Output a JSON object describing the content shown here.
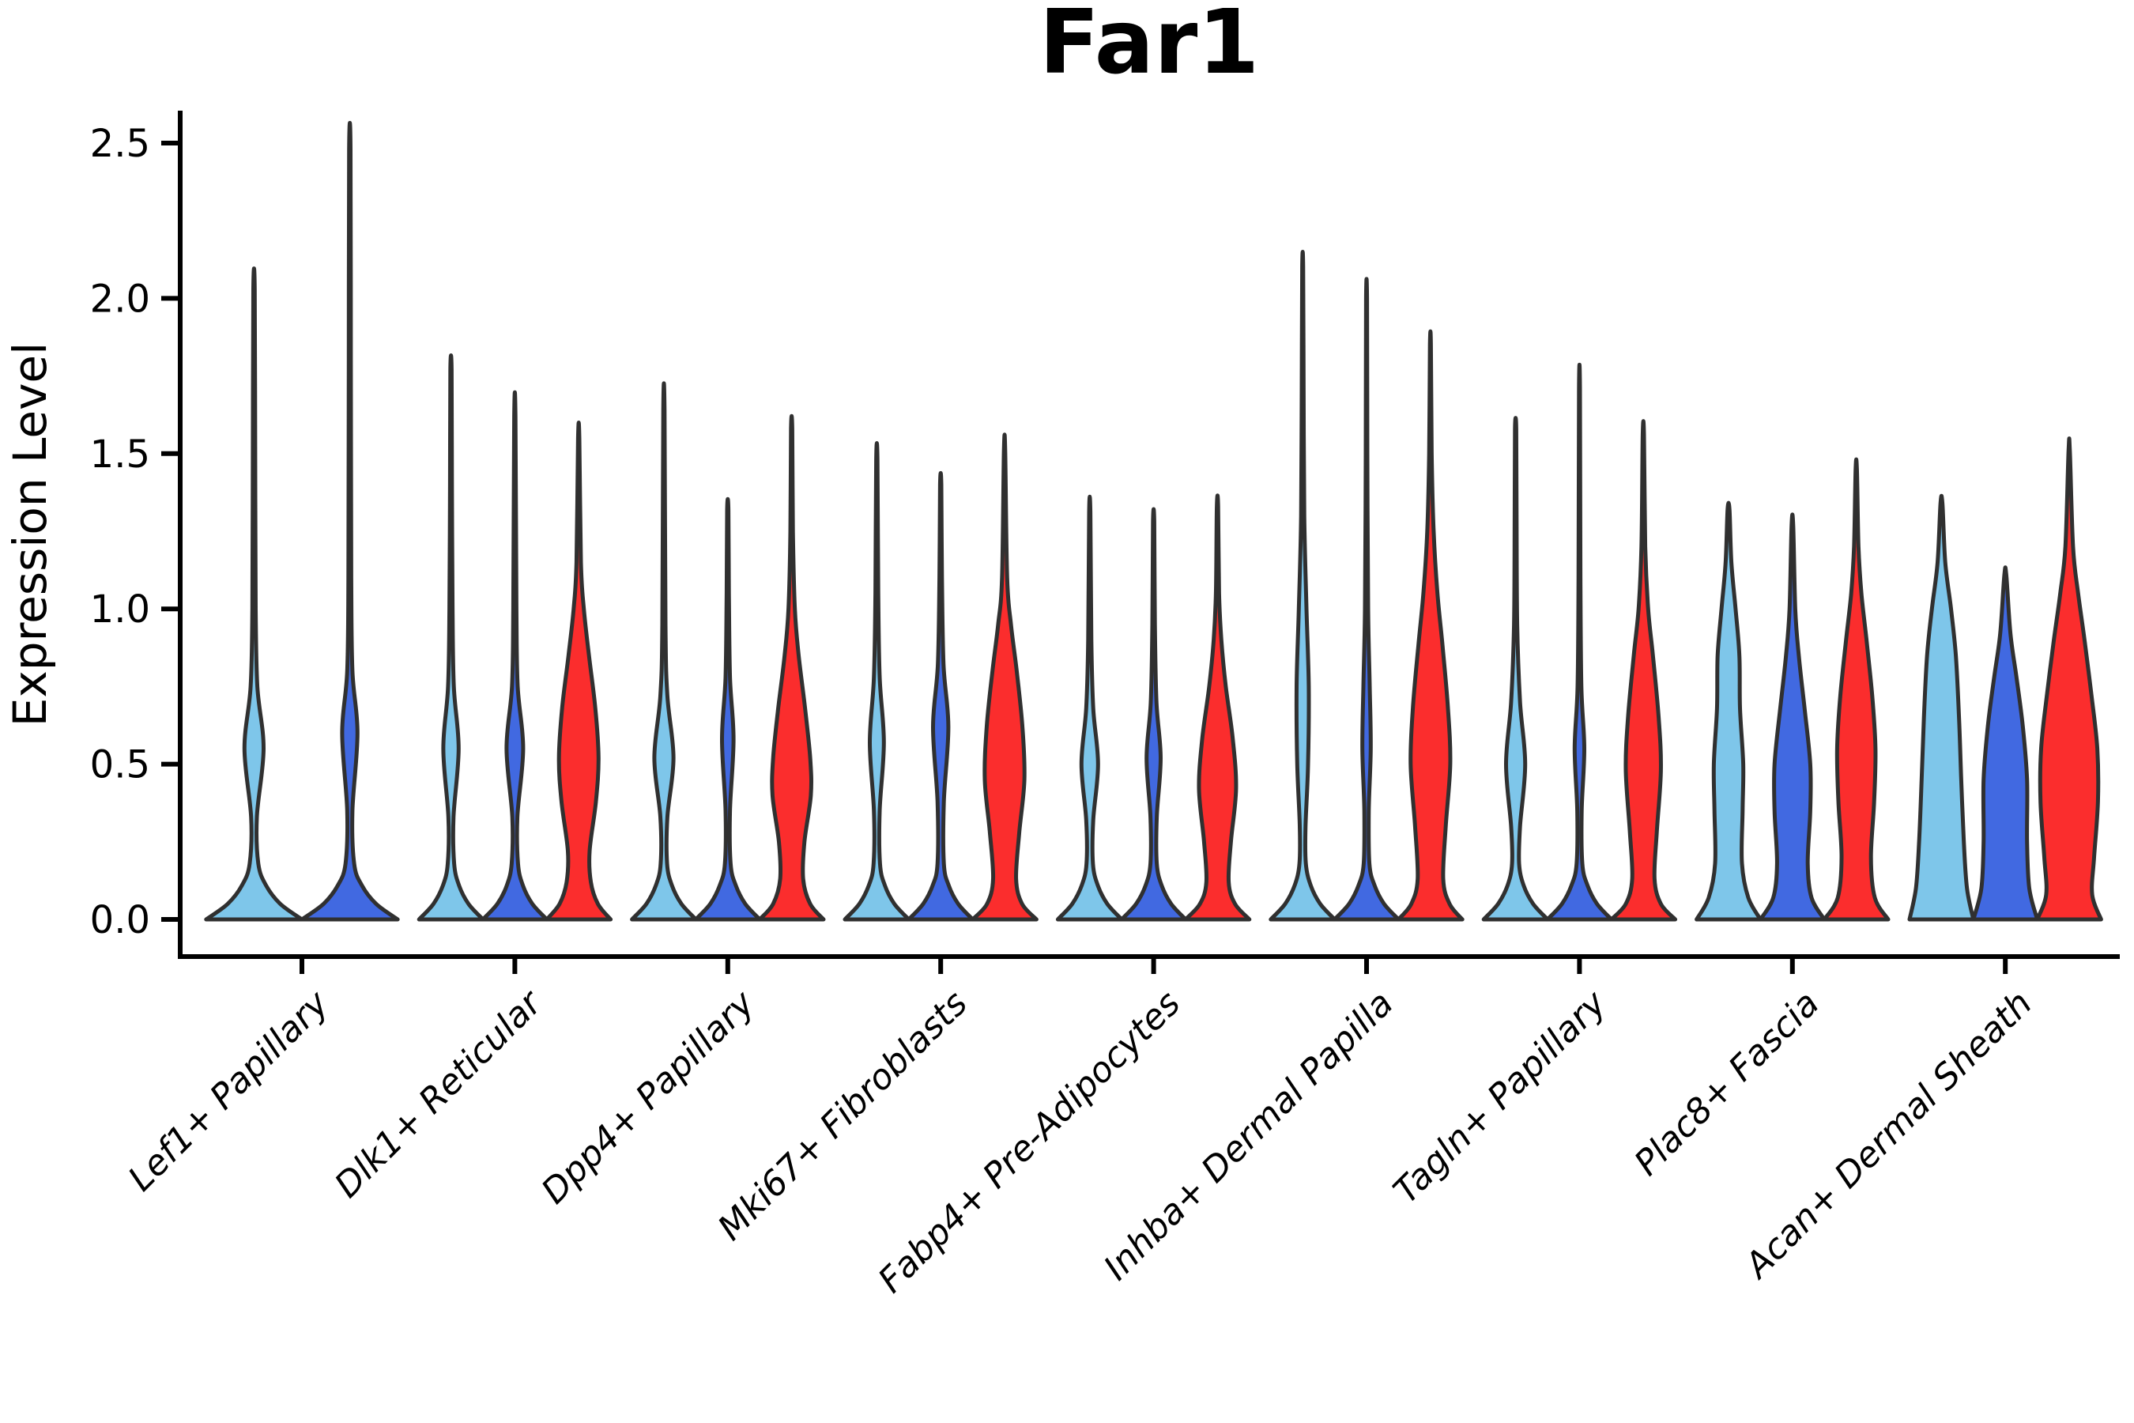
{
  "chart_data": {
    "type": "violin",
    "title": "Far1",
    "ylabel": "Expression Level",
    "xlabel": "",
    "ylim": [
      0,
      2.6
    ],
    "grid": false,
    "legend": "none",
    "yticks": [
      {
        "value": 0.0,
        "label": "0.0"
      },
      {
        "value": 0.5,
        "label": "0.5"
      },
      {
        "value": 1.0,
        "label": "1.0"
      },
      {
        "value": 1.5,
        "label": "1.5"
      },
      {
        "value": 2.0,
        "label": "2.0"
      },
      {
        "value": 2.5,
        "label": "2.5"
      }
    ],
    "categories": [
      "Lef1+ Papillary",
      "Dlk1+ Reticular",
      "Dpp4+ Papillary",
      "Mki67+ Fibroblasts",
      "Fabp4+ Pre-Adipocytes",
      "Inhba+ Dermal Papilla",
      "Tagln+ Papillary",
      "Plac8+ Fascia",
      "Acan+ Dermal Sheath"
    ],
    "series_colors": {
      "light_blue": "#7EC6EA",
      "royal_blue": "#4169E1",
      "red": "#FB2D2D"
    },
    "outline_color": "#303030",
    "axis_color": "#000000",
    "violins": [
      {
        "category": 0,
        "series": "light_blue",
        "max_expression": 2.03,
        "density_profile": [
          [
            0,
            1
          ],
          [
            0.05,
            0.55
          ],
          [
            0.11,
            0.25
          ],
          [
            0.18,
            0.09
          ],
          [
            0.33,
            0.06
          ],
          [
            0.55,
            0.2
          ],
          [
            0.75,
            0.07
          ],
          [
            1.0,
            0.035
          ],
          [
            1.5,
            0.025
          ],
          [
            2.03,
            0.015
          ]
        ]
      },
      {
        "category": 0,
        "series": "royal_blue",
        "max_expression": 2.48,
        "density_profile": [
          [
            0,
            1
          ],
          [
            0.05,
            0.55
          ],
          [
            0.11,
            0.25
          ],
          [
            0.18,
            0.09
          ],
          [
            0.35,
            0.055
          ],
          [
            0.6,
            0.16
          ],
          [
            0.8,
            0.055
          ],
          [
            1.1,
            0.03
          ],
          [
            1.8,
            0.022
          ],
          [
            2.48,
            0.015
          ]
        ]
      },
      {
        "category": 1,
        "series": "light_blue",
        "max_expression": 1.77,
        "density_profile": [
          [
            0,
            1
          ],
          [
            0.05,
            0.55
          ],
          [
            0.11,
            0.25
          ],
          [
            0.18,
            0.1
          ],
          [
            0.33,
            0.08
          ],
          [
            0.55,
            0.24
          ],
          [
            0.75,
            0.09
          ],
          [
            1.0,
            0.05
          ],
          [
            1.4,
            0.03
          ],
          [
            1.77,
            0.02
          ]
        ]
      },
      {
        "category": 1,
        "series": "royal_blue",
        "max_expression": 1.62,
        "density_profile": [
          [
            0,
            1
          ],
          [
            0.05,
            0.55
          ],
          [
            0.11,
            0.25
          ],
          [
            0.18,
            0.1
          ],
          [
            0.33,
            0.08
          ],
          [
            0.55,
            0.26
          ],
          [
            0.75,
            0.09
          ],
          [
            1.0,
            0.05
          ],
          [
            1.62,
            0.02
          ]
        ]
      },
      {
        "category": 1,
        "series": "red",
        "max_expression": 1.55,
        "density_profile": [
          [
            0,
            1
          ],
          [
            0.05,
            0.6
          ],
          [
            0.12,
            0.38
          ],
          [
            0.22,
            0.34
          ],
          [
            0.38,
            0.54
          ],
          [
            0.52,
            0.62
          ],
          [
            0.68,
            0.52
          ],
          [
            0.85,
            0.32
          ],
          [
            1.0,
            0.16
          ],
          [
            1.15,
            0.07
          ],
          [
            1.55,
            0.02
          ]
        ]
      },
      {
        "category": 2,
        "series": "light_blue",
        "max_expression": 1.64,
        "density_profile": [
          [
            0,
            1
          ],
          [
            0.05,
            0.55
          ],
          [
            0.11,
            0.25
          ],
          [
            0.18,
            0.1
          ],
          [
            0.33,
            0.11
          ],
          [
            0.52,
            0.3
          ],
          [
            0.72,
            0.11
          ],
          [
            0.95,
            0.05
          ],
          [
            1.64,
            0.02
          ]
        ]
      },
      {
        "category": 2,
        "series": "royal_blue",
        "max_expression": 1.32,
        "density_profile": [
          [
            0,
            1
          ],
          [
            0.05,
            0.55
          ],
          [
            0.11,
            0.25
          ],
          [
            0.18,
            0.09
          ],
          [
            0.35,
            0.07
          ],
          [
            0.58,
            0.18
          ],
          [
            0.78,
            0.07
          ],
          [
            1.05,
            0.035
          ],
          [
            1.32,
            0.02
          ]
        ]
      },
      {
        "category": 2,
        "series": "red",
        "max_expression": 1.58,
        "density_profile": [
          [
            0,
            1
          ],
          [
            0.05,
            0.58
          ],
          [
            0.13,
            0.36
          ],
          [
            0.25,
            0.4
          ],
          [
            0.4,
            0.6
          ],
          [
            0.52,
            0.58
          ],
          [
            0.68,
            0.42
          ],
          [
            0.85,
            0.22
          ],
          [
            1.0,
            0.1
          ],
          [
            1.25,
            0.04
          ],
          [
            1.58,
            0.02
          ]
        ]
      },
      {
        "category": 3,
        "series": "light_blue",
        "max_expression": 1.48,
        "density_profile": [
          [
            0,
            1
          ],
          [
            0.05,
            0.55
          ],
          [
            0.11,
            0.25
          ],
          [
            0.18,
            0.1
          ],
          [
            0.35,
            0.09
          ],
          [
            0.57,
            0.22
          ],
          [
            0.78,
            0.09
          ],
          [
            1.05,
            0.045
          ],
          [
            1.48,
            0.02
          ]
        ]
      },
      {
        "category": 3,
        "series": "royal_blue",
        "max_expression": 1.4,
        "density_profile": [
          [
            0,
            1
          ],
          [
            0.05,
            0.55
          ],
          [
            0.11,
            0.25
          ],
          [
            0.18,
            0.1
          ],
          [
            0.38,
            0.1
          ],
          [
            0.62,
            0.24
          ],
          [
            0.82,
            0.09
          ],
          [
            1.1,
            0.04
          ],
          [
            1.4,
            0.02
          ]
        ]
      },
      {
        "category": 3,
        "series": "red",
        "max_expression": 1.51,
        "density_profile": [
          [
            0,
            1
          ],
          [
            0.05,
            0.55
          ],
          [
            0.13,
            0.36
          ],
          [
            0.28,
            0.46
          ],
          [
            0.45,
            0.62
          ],
          [
            0.62,
            0.56
          ],
          [
            0.8,
            0.38
          ],
          [
            0.95,
            0.2
          ],
          [
            1.1,
            0.08
          ],
          [
            1.51,
            0.02
          ]
        ]
      },
      {
        "category": 4,
        "series": "light_blue",
        "max_expression": 1.31,
        "density_profile": [
          [
            0,
            1
          ],
          [
            0.05,
            0.55
          ],
          [
            0.11,
            0.25
          ],
          [
            0.18,
            0.1
          ],
          [
            0.32,
            0.11
          ],
          [
            0.5,
            0.26
          ],
          [
            0.68,
            0.11
          ],
          [
            0.9,
            0.05
          ],
          [
            1.31,
            0.02
          ]
        ]
      },
      {
        "category": 4,
        "series": "royal_blue",
        "max_expression": 1.28,
        "density_profile": [
          [
            0,
            1
          ],
          [
            0.05,
            0.55
          ],
          [
            0.11,
            0.25
          ],
          [
            0.18,
            0.1
          ],
          [
            0.33,
            0.1
          ],
          [
            0.52,
            0.22
          ],
          [
            0.7,
            0.09
          ],
          [
            0.95,
            0.04
          ],
          [
            1.28,
            0.02
          ]
        ]
      },
      {
        "category": 4,
        "series": "red",
        "max_expression": 1.33,
        "density_profile": [
          [
            0,
            1
          ],
          [
            0.05,
            0.55
          ],
          [
            0.12,
            0.35
          ],
          [
            0.25,
            0.42
          ],
          [
            0.42,
            0.58
          ],
          [
            0.58,
            0.48
          ],
          [
            0.75,
            0.26
          ],
          [
            0.9,
            0.12
          ],
          [
            1.05,
            0.05
          ],
          [
            1.33,
            0.02
          ]
        ]
      },
      {
        "category": 5,
        "series": "light_blue",
        "max_expression": 2.1,
        "density_profile": [
          [
            0,
            1
          ],
          [
            0.05,
            0.55
          ],
          [
            0.11,
            0.25
          ],
          [
            0.18,
            0.1
          ],
          [
            0.3,
            0.09
          ],
          [
            0.5,
            0.17
          ],
          [
            0.75,
            0.19
          ],
          [
            1.0,
            0.12
          ],
          [
            1.3,
            0.05
          ],
          [
            1.7,
            0.03
          ],
          [
            2.1,
            0.015
          ]
        ]
      },
      {
        "category": 5,
        "series": "royal_blue",
        "max_expression": 2.0,
        "density_profile": [
          [
            0,
            1
          ],
          [
            0.05,
            0.55
          ],
          [
            0.11,
            0.25
          ],
          [
            0.18,
            0.09
          ],
          [
            0.35,
            0.07
          ],
          [
            0.55,
            0.13
          ],
          [
            0.75,
            0.1
          ],
          [
            1.0,
            0.05
          ],
          [
            1.5,
            0.025
          ],
          [
            2.0,
            0.015
          ]
        ]
      },
      {
        "category": 5,
        "series": "red",
        "max_expression": 1.85,
        "density_profile": [
          [
            0,
            1
          ],
          [
            0.05,
            0.6
          ],
          [
            0.13,
            0.4
          ],
          [
            0.3,
            0.48
          ],
          [
            0.5,
            0.62
          ],
          [
            0.68,
            0.55
          ],
          [
            0.88,
            0.38
          ],
          [
            1.05,
            0.22
          ],
          [
            1.25,
            0.1
          ],
          [
            1.5,
            0.04
          ],
          [
            1.85,
            0.015
          ]
        ]
      },
      {
        "category": 6,
        "series": "light_blue",
        "max_expression": 1.58,
        "density_profile": [
          [
            0,
            1
          ],
          [
            0.05,
            0.55
          ],
          [
            0.11,
            0.25
          ],
          [
            0.18,
            0.11
          ],
          [
            0.3,
            0.14
          ],
          [
            0.5,
            0.3
          ],
          [
            0.7,
            0.14
          ],
          [
            0.95,
            0.05
          ],
          [
            1.3,
            0.03
          ],
          [
            1.58,
            0.02
          ]
        ]
      },
      {
        "category": 6,
        "series": "royal_blue",
        "max_expression": 1.71,
        "density_profile": [
          [
            0,
            1
          ],
          [
            0.05,
            0.55
          ],
          [
            0.11,
            0.25
          ],
          [
            0.18,
            0.09
          ],
          [
            0.35,
            0.07
          ],
          [
            0.55,
            0.15
          ],
          [
            0.75,
            0.06
          ],
          [
            1.1,
            0.03
          ],
          [
            1.71,
            0.015
          ]
        ]
      },
      {
        "category": 6,
        "series": "red",
        "max_expression": 1.56,
        "density_profile": [
          [
            0,
            1
          ],
          [
            0.05,
            0.55
          ],
          [
            0.13,
            0.35
          ],
          [
            0.28,
            0.42
          ],
          [
            0.48,
            0.55
          ],
          [
            0.65,
            0.48
          ],
          [
            0.85,
            0.3
          ],
          [
            1.0,
            0.15
          ],
          [
            1.2,
            0.06
          ],
          [
            1.56,
            0.02
          ]
        ]
      },
      {
        "category": 7,
        "series": "light_blue",
        "max_expression": 1.32,
        "density_profile": [
          [
            0,
            1
          ],
          [
            0.07,
            0.62
          ],
          [
            0.18,
            0.42
          ],
          [
            0.35,
            0.44
          ],
          [
            0.5,
            0.46
          ],
          [
            0.68,
            0.36
          ],
          [
            0.85,
            0.34
          ],
          [
            1.0,
            0.22
          ],
          [
            1.15,
            0.09
          ],
          [
            1.32,
            0.03
          ]
        ]
      },
      {
        "category": 7,
        "series": "royal_blue",
        "max_expression": 1.27,
        "density_profile": [
          [
            0,
            1
          ],
          [
            0.07,
            0.6
          ],
          [
            0.18,
            0.48
          ],
          [
            0.35,
            0.56
          ],
          [
            0.5,
            0.56
          ],
          [
            0.68,
            0.38
          ],
          [
            0.85,
            0.2
          ],
          [
            1.0,
            0.09
          ],
          [
            1.27,
            0.025
          ]
        ]
      },
      {
        "category": 7,
        "series": "red",
        "max_expression": 1.45,
        "density_profile": [
          [
            0,
            1
          ],
          [
            0.07,
            0.58
          ],
          [
            0.2,
            0.46
          ],
          [
            0.38,
            0.56
          ],
          [
            0.55,
            0.6
          ],
          [
            0.72,
            0.5
          ],
          [
            0.9,
            0.32
          ],
          [
            1.05,
            0.16
          ],
          [
            1.2,
            0.07
          ],
          [
            1.45,
            0.02
          ]
        ]
      },
      {
        "category": 8,
        "series": "light_blue",
        "max_expression": 1.34,
        "density_profile": [
          [
            0,
            1
          ],
          [
            0.1,
            0.8
          ],
          [
            0.25,
            0.7
          ],
          [
            0.45,
            0.62
          ],
          [
            0.65,
            0.55
          ],
          [
            0.85,
            0.45
          ],
          [
            1.0,
            0.3
          ],
          [
            1.15,
            0.12
          ],
          [
            1.34,
            0.03
          ]
        ]
      },
      {
        "category": 8,
        "series": "royal_blue",
        "max_expression": 1.11,
        "density_profile": [
          [
            0,
            1
          ],
          [
            0.1,
            0.75
          ],
          [
            0.25,
            0.68
          ],
          [
            0.45,
            0.68
          ],
          [
            0.62,
            0.55
          ],
          [
            0.78,
            0.35
          ],
          [
            0.92,
            0.16
          ],
          [
            1.11,
            0.03
          ]
        ]
      },
      {
        "category": 8,
        "series": "red",
        "max_expression": 1.51,
        "density_profile": [
          [
            0,
            1
          ],
          [
            0.08,
            0.72
          ],
          [
            0.2,
            0.78
          ],
          [
            0.38,
            0.9
          ],
          [
            0.55,
            0.88
          ],
          [
            0.72,
            0.7
          ],
          [
            0.9,
            0.48
          ],
          [
            1.05,
            0.28
          ],
          [
            1.2,
            0.12
          ],
          [
            1.51,
            0.02
          ]
        ]
      }
    ]
  }
}
